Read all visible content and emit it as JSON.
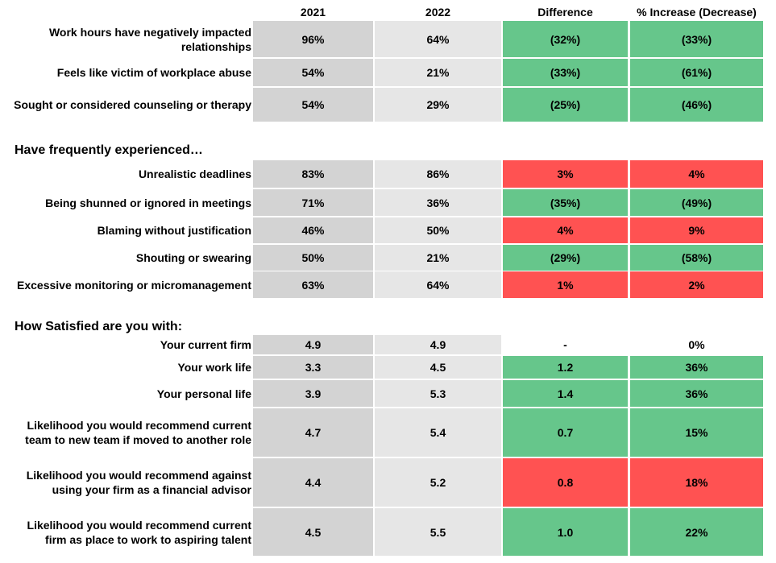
{
  "header": {
    "columns": [
      "2021",
      "2022",
      "Difference",
      "% Increase (Decrease)"
    ]
  },
  "sections": [
    {
      "rows": [
        {
          "label": "Work hours have negatively impacted relationships",
          "values": [
            "96%",
            "64%",
            "(32%)",
            "(33%)"
          ],
          "color": "#66c68b"
        },
        {
          "label": "Feels like victim of workplace abuse",
          "values": [
            "54%",
            "21%",
            "(33%)",
            "(61%)"
          ],
          "color": "#66c68b"
        },
        {
          "label": "Sought or considered counseling or therapy",
          "values": [
            "54%",
            "29%",
            "(25%)",
            "(46%)"
          ],
          "color": "#66c68b"
        }
      ]
    },
    {
      "title": "Have frequently experienced…",
      "rows": [
        {
          "label": "Unrealistic deadlines",
          "values": [
            "83%",
            "86%",
            "3%",
            "4%"
          ],
          "color": "#ff5252"
        },
        {
          "label": "Being shunned or ignored in meetings",
          "values": [
            "71%",
            "36%",
            "(35%)",
            "(49%)"
          ],
          "color": "#66c68b"
        },
        {
          "label": "Blaming without justification",
          "values": [
            "46%",
            "50%",
            "4%",
            "9%"
          ],
          "color": "#ff5252"
        },
        {
          "label": "Shouting or swearing",
          "values": [
            "50%",
            "21%",
            "(29%)",
            "(58%)"
          ],
          "color": "#66c68b"
        },
        {
          "label": "Excessive monitoring or micromanagement",
          "values": [
            "63%",
            "64%",
            "1%",
            "2%"
          ],
          "color": "#ff5252"
        }
      ]
    },
    {
      "title": "How Satisfied are you with:",
      "rows": [
        {
          "label": "Your current firm",
          "values": [
            "4.9",
            "4.9",
            "-",
            "0%"
          ]
        },
        {
          "label": "Your work life",
          "values": [
            "3.3",
            "4.5",
            "1.2",
            "36%"
          ],
          "color": "#66c68b"
        },
        {
          "label": "Your personal life",
          "values": [
            "3.9",
            "5.3",
            "1.4",
            "36%"
          ],
          "color": "#66c68b"
        },
        {
          "label": "Likelihood you would recommend current team to new team if moved to another role",
          "values": [
            "4.7",
            "5.4",
            "0.7",
            "15%"
          ],
          "color": "#66c68b"
        },
        {
          "label": "Likelihood you would recommend against using your firm as a financial advisor",
          "values": [
            "4.4",
            "5.2",
            "0.8",
            "18%"
          ],
          "color": "#ff5252"
        },
        {
          "label": "Likelihood you would recommend current firm as place to work to aspiring talent",
          "values": [
            "4.5",
            "5.5",
            "1.0",
            "22%"
          ],
          "color": "#66c68b"
        }
      ]
    }
  ]
}
